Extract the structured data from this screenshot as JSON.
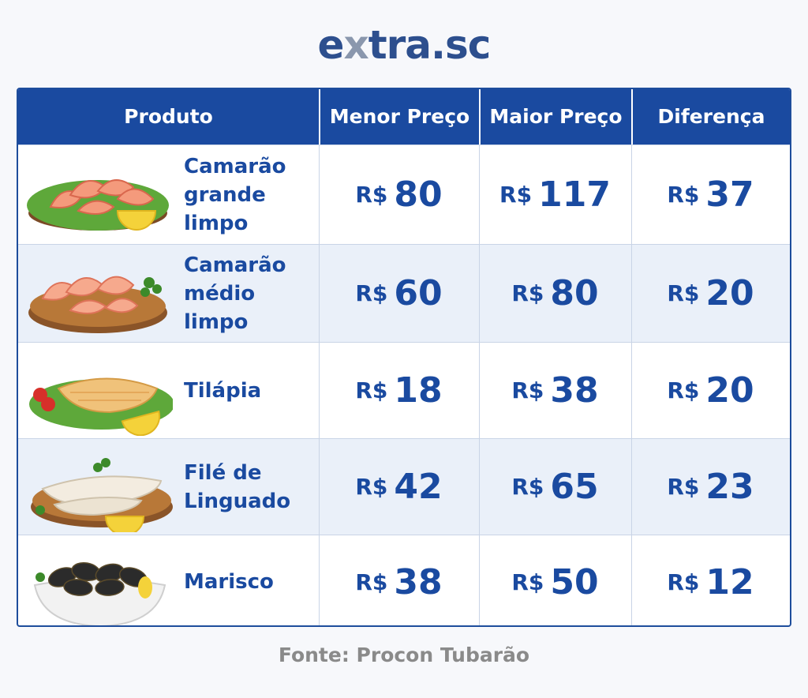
{
  "logo": {
    "prefix": "e",
    "accent": "x",
    "suffix": "tra.sc"
  },
  "table": {
    "headers": [
      "Produto",
      "Menor Preço",
      "Maior Preço",
      "Diferença"
    ],
    "currency": "R$",
    "rows": [
      {
        "name_line1": "Camarão",
        "name_line2": "grande limpo",
        "min": "80",
        "max": "117",
        "diff": "37",
        "image": "shrimp-plate-icon"
      },
      {
        "name_line1": "Camarão",
        "name_line2": "médio limpo",
        "min": "60",
        "max": "80",
        "diff": "20",
        "image": "shrimp-board-icon"
      },
      {
        "name_line1": "Tilápia",
        "name_line2": "",
        "min": "18",
        "max": "38",
        "diff": "20",
        "image": "tilapia-fillet-icon"
      },
      {
        "name_line1": "Filé de",
        "name_line2": "Linguado",
        "min": "42",
        "max": "65",
        "diff": "23",
        "image": "sole-fillet-icon"
      },
      {
        "name_line1": "Marisco",
        "name_line2": "",
        "min": "38",
        "max": "50",
        "diff": "12",
        "image": "mussels-bowl-icon"
      }
    ]
  },
  "source": "Fonte: Procon Tubarão",
  "colors": {
    "header": "#1a4aa0",
    "text": "#1a4aa0",
    "alt_row": "#eaf0f9",
    "logo": "#2d4f8e"
  }
}
